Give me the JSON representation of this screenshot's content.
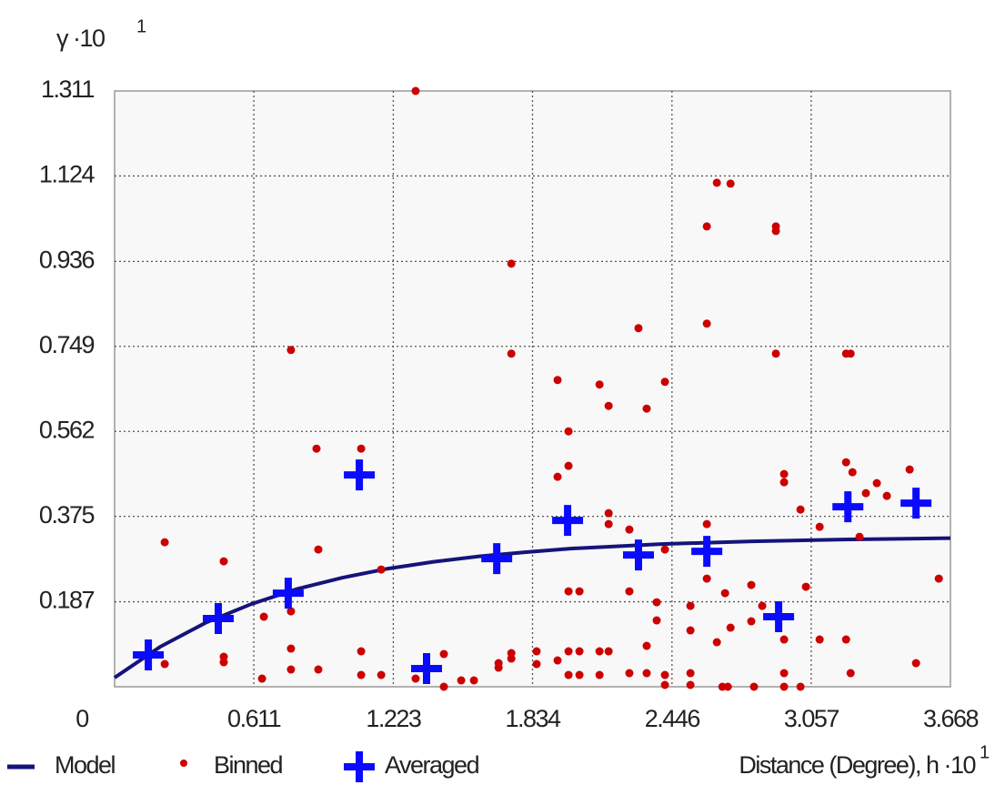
{
  "chart_data": {
    "type": "scatter",
    "y_label": "γ ·10",
    "y_label_exponent": "1",
    "x_label": "Distance (Degree), h ·10",
    "x_label_exponent": "1",
    "xlim": [
      0,
      3.668
    ],
    "ylim": [
      0,
      1.311
    ],
    "xticks": [
      0,
      0.611,
      1.223,
      1.834,
      2.446,
      3.057,
      3.668
    ],
    "yticks": [
      0.187,
      0.375,
      0.562,
      0.749,
      0.936,
      1.124,
      1.311
    ],
    "grid": true,
    "series": [
      {
        "name": "Model",
        "type": "line",
        "color": "#14147a",
        "x": [
          0,
          0.2,
          0.4,
          0.6,
          0.8,
          1.0,
          1.2,
          1.4,
          1.6,
          1.8,
          2.0,
          2.4,
          2.8,
          3.2,
          3.668
        ],
        "values": [
          0.02,
          0.088,
          0.141,
          0.182,
          0.215,
          0.24,
          0.26,
          0.275,
          0.287,
          0.296,
          0.304,
          0.314,
          0.32,
          0.324,
          0.327
        ]
      },
      {
        "name": "Binned",
        "type": "dot",
        "color": "#cc0000",
        "x": [
          0.22,
          0.22,
          0.479,
          0.479,
          0.479,
          0.647,
          0.655,
          0.774,
          0.774,
          0.774,
          0.774,
          0.886,
          0.894,
          0.894,
          1.082,
          1.082,
          1.082,
          1.17,
          1.17,
          1.321,
          1.321,
          1.445,
          1.445,
          1.521,
          1.577,
          1.685,
          1.685,
          1.741,
          1.741,
          1.741,
          1.741,
          1.852,
          1.852,
          1.944,
          1.944,
          1.944,
          1.992,
          1.992,
          1.992,
          1.992,
          1.992,
          2.04,
          2.04,
          2.04,
          2.128,
          2.128,
          2.128,
          2.168,
          2.168,
          2.168,
          2.168,
          2.259,
          2.259,
          2.259,
          2.299,
          2.335,
          2.335,
          2.335,
          2.379,
          2.379,
          2.415,
          2.415,
          2.415,
          2.415,
          2.527,
          2.527,
          2.527,
          2.527,
          2.599,
          2.599,
          2.599,
          2.599,
          2.643,
          2.643,
          2.667,
          2.679,
          2.691,
          2.703,
          2.703,
          2.794,
          2.794,
          2.806,
          2.842,
          2.902,
          2.902,
          2.902,
          2.938,
          2.938,
          2.938,
          2.938,
          2.938,
          3.01,
          3.01,
          3.034,
          3.094,
          3.094,
          3.21,
          3.23,
          3.21,
          3.21,
          3.23,
          3.238,
          3.269,
          3.297,
          3.345,
          3.389,
          3.489,
          3.517,
          3.617
        ],
        "values": [
          0.318,
          0.05,
          0.276,
          0.066,
          0.054,
          0.018,
          0.154,
          0.741,
          0.166,
          0.084,
          0.038,
          0.524,
          0.302,
          0.038,
          0.524,
          0.078,
          0.026,
          0.026,
          0.258,
          1.311,
          0.018,
          0.072,
          0,
          0.014,
          0.014,
          0.052,
          0.042,
          0.931,
          0.733,
          0.074,
          0.062,
          0.078,
          0.05,
          0.675,
          0.462,
          0.058,
          0.486,
          0.562,
          0.078,
          0.026,
          0.21,
          0.21,
          0.026,
          0.078,
          0.665,
          0.026,
          0.078,
          0.618,
          0.382,
          0.358,
          0.078,
          0.346,
          0.21,
          0.03,
          0.789,
          0.612,
          0.09,
          0.03,
          0.146,
          0.186,
          0.671,
          0.302,
          0.026,
          0.004,
          0.178,
          0.124,
          0.03,
          0.004,
          1.013,
          0.799,
          0.358,
          0.238,
          1.109,
          0.098,
          0,
          0.206,
          0,
          1.107,
          0.13,
          0.224,
          0.144,
          0,
          0.178,
          1.013,
          1.003,
          0.733,
          0.468,
          0.45,
          0.104,
          0.03,
          0,
          0,
          0.39,
          0.22,
          0.352,
          0.104,
          0.733,
          0.733,
          0.494,
          0.104,
          0.03,
          0.472,
          0.33,
          0.426,
          0.448,
          0.42,
          0.478,
          0.052,
          0.238
        ]
      },
      {
        "name": "Averaged",
        "type": "plus",
        "color": "#0a0aff",
        "x": [
          0.148,
          0.455,
          0.762,
          1.074,
          1.369,
          1.677,
          1.988,
          2.299,
          2.599,
          2.914,
          3.218,
          3.517
        ],
        "values": [
          0.07,
          0.15,
          0.206,
          0.466,
          0.04,
          0.282,
          0.366,
          0.29,
          0.298,
          0.154,
          0.396,
          0.404
        ]
      }
    ]
  }
}
